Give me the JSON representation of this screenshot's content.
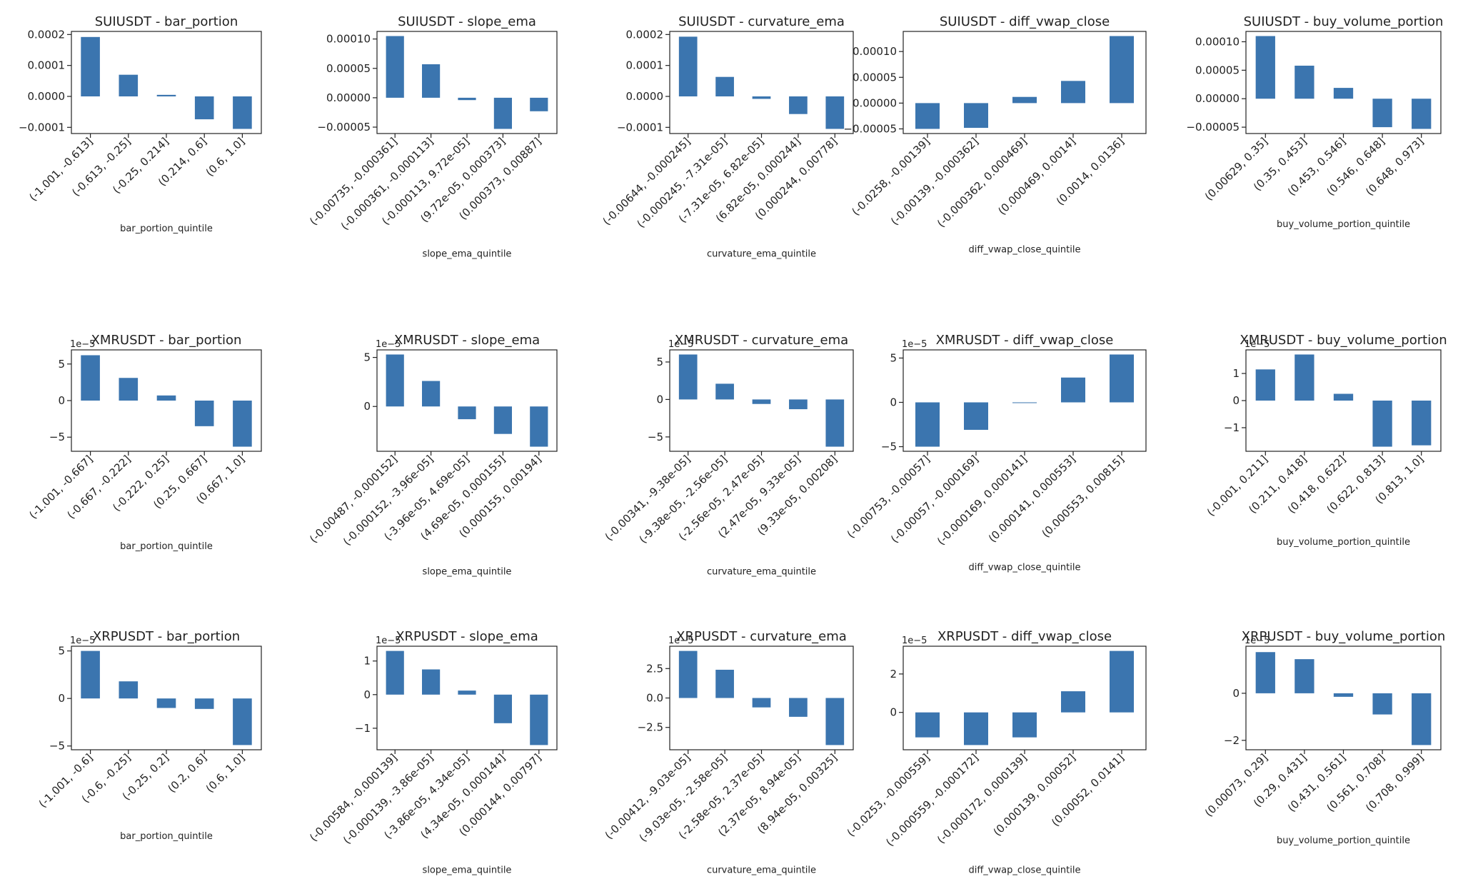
{
  "figure": {
    "background": "#ffffff",
    "bar_color": "#3b75af",
    "axis_color": "#222222"
  },
  "chart_data": [
    {
      "title": "SUIUSDT - bar_portion",
      "type": "bar",
      "xlabel": "bar_portion_quintile",
      "ylabel": "",
      "exp_label": "",
      "ylim": [
        -0.000105,
        0.000195
      ],
      "yticks": [
        0.0002,
        0.0001,
        0.0,
        -0.0001
      ],
      "ytick_labels": [
        "0.0002",
        "0.0001",
        "0.0000",
        "−0.0001"
      ],
      "categories": [
        "(-1.001, -0.613]",
        "(-0.613, -0.25]",
        "(-0.25, 0.214]",
        "(0.214, 0.6]",
        "(0.6, 1.0]"
      ],
      "values": [
        0.000192,
        7e-05,
        5e-06,
        -7.4e-05,
        -0.000105
      ]
    },
    {
      "title": "SUIUSDT - slope_ema",
      "type": "bar",
      "xlabel": "slope_ema_quintile",
      "ylabel": "",
      "exp_label": "",
      "ylim": [
        -5.3e-05,
        0.000105
      ],
      "yticks": [
        0.0001,
        5e-05,
        0.0,
        -5e-05
      ],
      "ytick_labels": [
        "0.00010",
        "0.00005",
        "0.00000",
        "−0.00005"
      ],
      "categories": [
        "(-0.00735, -0.000361]",
        "(-0.000361, -0.000113]",
        "(-0.000113, 9.72e-05]",
        "(9.72e-05, 0.000373]",
        "(0.000373, 0.00887]"
      ],
      "values": [
        0.000105,
        5.7e-05,
        -4e-06,
        -5.3e-05,
        -2.3e-05
      ]
    },
    {
      "title": "SUIUSDT - curvature_ema",
      "type": "bar",
      "xlabel": "curvature_ema_quintile",
      "ylabel": "",
      "exp_label": "",
      "ylim": [
        -0.000105,
        0.000195
      ],
      "yticks": [
        0.0002,
        0.0001,
        0.0,
        -0.0001
      ],
      "ytick_labels": [
        "0.0002",
        "0.0001",
        "0.0000",
        "−0.0001"
      ],
      "categories": [
        "(-0.00644, -0.000245]",
        "(-0.000245, -7.31e-05]",
        "(-7.31e-05, 6.82e-05]",
        "(6.82e-05, 0.000244]",
        "(0.000244, 0.00778]"
      ],
      "values": [
        0.000193,
        6.3e-05,
        -8e-06,
        -5.7e-05,
        -0.000105
      ]
    },
    {
      "title": "SUIUSDT - diff_vwap_close",
      "type": "bar",
      "xlabel": "diff_vwap_close_quintile",
      "ylabel": "",
      "exp_label": "",
      "ylim": [
        -5e-05,
        0.00013
      ],
      "yticks": [
        0.0001,
        5e-05,
        0.0,
        -5e-05
      ],
      "ytick_labels": [
        "0.00010",
        "0.00005",
        "0.00000",
        "−0.00005"
      ],
      "categories": [
        "(-0.0258, -0.00139]",
        "(-0.00139, -0.000362]",
        "(-0.000362, 0.000469]",
        "(0.000469, 0.0014]",
        "(0.0014, 0.0136]"
      ],
      "values": [
        -5e-05,
        -4.8e-05,
        1.2e-05,
        4.3e-05,
        0.00013
      ]
    },
    {
      "title": "SUIUSDT - buy_volume_portion",
      "type": "bar",
      "xlabel": "buy_volume_portion_quintile",
      "ylabel": "",
      "exp_label": "",
      "ylim": [
        -5.3e-05,
        0.00011
      ],
      "yticks": [
        0.0001,
        5e-05,
        0.0,
        -5e-05
      ],
      "ytick_labels": [
        "0.00010",
        "0.00005",
        "0.00000",
        "−0.00005"
      ],
      "categories": [
        "(0.00629, 0.35]",
        "(0.35, 0.453]",
        "(0.453, 0.546]",
        "(0.546, 0.648]",
        "(0.648, 0.973]"
      ],
      "values": [
        0.00011,
        5.8e-05,
        1.9e-05,
        -5e-05,
        -5.3e-05
      ]
    },
    {
      "title": "XMRUSDT - bar_portion",
      "type": "bar",
      "xlabel": "bar_portion_quintile",
      "ylabel": "",
      "exp_label": "1e−5",
      "ylim": [
        -6.3,
        6.3
      ],
      "yticks": [
        5,
        0,
        -5
      ],
      "ytick_labels": [
        "5",
        "0",
        "−5"
      ],
      "categories": [
        "(-1.001, -0.667]",
        "(-0.667, -0.222]",
        "(-0.222, 0.25]",
        "(0.25, 0.667]",
        "(0.667, 1.0]"
      ],
      "values": [
        6.2,
        3.1,
        0.7,
        -3.5,
        -6.3
      ]
    },
    {
      "title": "XMRUSDT - slope_ema",
      "type": "bar",
      "xlabel": "slope_ema_quintile",
      "ylabel": "",
      "exp_label": "1e−5",
      "ylim": [
        -4.1,
        5.3
      ],
      "yticks": [
        5,
        0
      ],
      "ytick_labels": [
        "5",
        "0"
      ],
      "categories": [
        "(-0.00487, -0.000152]",
        "(-0.000152, -3.96e-05]",
        "(-3.96e-05, 4.69e-05]",
        "(4.69e-05, 0.000155]",
        "(0.000155, 0.00194]"
      ],
      "values": [
        5.3,
        2.6,
        -1.3,
        -2.8,
        -4.1
      ]
    },
    {
      "title": "XMRUSDT - curvature_ema",
      "type": "bar",
      "xlabel": "curvature_ema_quintile",
      "ylabel": "",
      "exp_label": "1e−5",
      "ylim": [
        -6.3,
        6.0
      ],
      "yticks": [
        5,
        0,
        -5
      ],
      "ytick_labels": [
        "5",
        "0",
        "−5"
      ],
      "categories": [
        "(-0.00341, -9.38e-05]",
        "(-9.38e-05, -2.56e-05]",
        "(-2.56e-05, 2.47e-05]",
        "(2.47e-05, 9.33e-05]",
        "(9.33e-05, 0.00208]"
      ],
      "values": [
        6.0,
        2.1,
        -0.6,
        -1.3,
        -6.3
      ]
    },
    {
      "title": "XMRUSDT - diff_vwap_close",
      "type": "bar",
      "xlabel": "diff_vwap_close_quintile",
      "ylabel": "",
      "exp_label": "1e−5",
      "ylim": [
        -5.0,
        5.4
      ],
      "yticks": [
        5,
        0,
        -5
      ],
      "ytick_labels": [
        "5",
        "0",
        "−5"
      ],
      "categories": [
        "(-0.00753, -0.00057]",
        "(-0.00057, -0.000169]",
        "(-0.000169, 0.000141]",
        "(0.000141, 0.000553]",
        "(0.000553, 0.00815]"
      ],
      "values": [
        -5.0,
        -3.1,
        0.0,
        2.8,
        5.4
      ]
    },
    {
      "title": "XMRUSDT - buy_volume_portion",
      "type": "bar",
      "xlabel": "buy_volume_portion_quintile",
      "ylabel": "",
      "exp_label": "1e−5",
      "ylim": [
        -1.7,
        1.7
      ],
      "yticks": [
        1,
        0,
        -1
      ],
      "ytick_labels": [
        "1",
        "0",
        "−1"
      ],
      "categories": [
        "(-0.001, 0.211]",
        "(0.211, 0.418]",
        "(0.418, 0.622]",
        "(0.622, 0.813]",
        "(0.813, 1.0]"
      ],
      "values": [
        1.15,
        1.7,
        0.25,
        -1.7,
        -1.65
      ]
    },
    {
      "title": "XRPUSDT - bar_portion",
      "type": "bar",
      "xlabel": "bar_portion_quintile",
      "ylabel": "",
      "exp_label": "1e−5",
      "ylim": [
        -4.9,
        5.0
      ],
      "yticks": [
        5,
        0,
        -5
      ],
      "ytick_labels": [
        "5",
        "0",
        "−5"
      ],
      "categories": [
        "(-1.001, -0.6]",
        "(-0.6, -0.25]",
        "(-0.25, 0.2]",
        "(0.2, 0.6]",
        "(0.6, 1.0]"
      ],
      "values": [
        5.0,
        1.8,
        -1.0,
        -1.1,
        -4.9
      ]
    },
    {
      "title": "XRPUSDT - slope_ema",
      "type": "bar",
      "xlabel": "slope_ema_quintile",
      "ylabel": "",
      "exp_label": "1e−5",
      "ylim": [
        -1.5,
        1.3
      ],
      "yticks": [
        1,
        0,
        -1
      ],
      "ytick_labels": [
        "1",
        "0",
        "−1"
      ],
      "categories": [
        "(-0.00584, -0.000139]",
        "(-0.000139, -3.86e-05]",
        "(-3.86e-05, 4.34e-05]",
        "(4.34e-05, 0.000144]",
        "(0.000144, 0.00797]"
      ],
      "values": [
        1.3,
        0.75,
        0.12,
        -0.85,
        -1.5
      ]
    },
    {
      "title": "XRPUSDT - curvature_ema",
      "type": "bar",
      "xlabel": "curvature_ema_quintile",
      "ylabel": "",
      "exp_label": "1e−5",
      "ylim": [
        -4.0,
        4.0
      ],
      "yticks": [
        2.5,
        0,
        -2.5
      ],
      "ytick_labels": [
        "2.5",
        "0.0",
        "−2.5"
      ],
      "categories": [
        "(-0.00412, -9.03e-05]",
        "(-9.03e-05, -2.58e-05]",
        "(-2.58e-05, 2.37e-05]",
        "(2.37e-05, 8.94e-05]",
        "(8.94e-05, 0.00325]"
      ],
      "values": [
        4.0,
        2.4,
        -0.8,
        -1.6,
        -4.0
      ]
    },
    {
      "title": "XRPUSDT - diff_vwap_close",
      "type": "bar",
      "xlabel": "diff_vwap_close_quintile",
      "ylabel": "",
      "exp_label": "1e−5",
      "ylim": [
        -1.7,
        3.2
      ],
      "yticks": [
        2,
        0
      ],
      "ytick_labels": [
        "2",
        "0"
      ],
      "categories": [
        "(-0.0253, -0.000559]",
        "(-0.000559, -0.000172]",
        "(-0.000172, 0.000139]",
        "(0.000139, 0.00052]",
        "(0.00052, 0.0141]"
      ],
      "values": [
        -1.3,
        -1.7,
        -1.3,
        1.1,
        3.2
      ]
    },
    {
      "title": "XRPUSDT - buy_volume_portion",
      "type": "bar",
      "xlabel": "buy_volume_portion_quintile",
      "ylabel": "",
      "exp_label": "1e−5",
      "ylim": [
        -2.2,
        1.8
      ],
      "yticks": [
        0,
        -2
      ],
      "ytick_labels": [
        "0",
        "−2"
      ],
      "categories": [
        "(0.00073, 0.29]",
        "(0.29, 0.431]",
        "(0.431, 0.561]",
        "(0.561, 0.708]",
        "(0.708, 0.999]"
      ],
      "values": [
        1.75,
        1.45,
        -0.15,
        -0.9,
        -2.2
      ]
    }
  ]
}
